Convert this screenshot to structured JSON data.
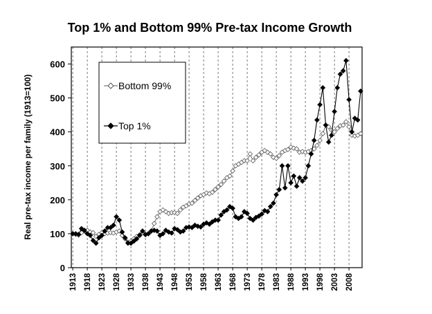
{
  "chart_data": {
    "type": "line",
    "title": "Top 1% and Bottom 99% Pre-tax Income Growth",
    "xlabel": "",
    "ylabel": "Real pre-tax income per family (1913=100)",
    "ylim": [
      0,
      650
    ],
    "xlim": [
      1913,
      2012
    ],
    "yticks": [
      0,
      100,
      200,
      300,
      400,
      500,
      600
    ],
    "xticks": [
      1913,
      1918,
      1923,
      1928,
      1933,
      1938,
      1943,
      1948,
      1953,
      1958,
      1963,
      1968,
      1973,
      1978,
      1983,
      1988,
      1993,
      1998,
      2003,
      2008
    ],
    "grid": "vertical-dashed",
    "legend_position": "top-left",
    "series": [
      {
        "name": "Bottom 99%",
        "marker": "open-diamond",
        "color": "#7a7a7a",
        "x": [
          1913,
          1914,
          1915,
          1916,
          1917,
          1918,
          1919,
          1920,
          1921,
          1922,
          1923,
          1924,
          1925,
          1926,
          1927,
          1928,
          1929,
          1930,
          1931,
          1932,
          1933,
          1934,
          1935,
          1936,
          1937,
          1938,
          1939,
          1940,
          1941,
          1942,
          1943,
          1944,
          1945,
          1946,
          1947,
          1948,
          1949,
          1950,
          1951,
          1952,
          1953,
          1954,
          1955,
          1956,
          1957,
          1958,
          1959,
          1960,
          1961,
          1962,
          1963,
          1964,
          1965,
          1966,
          1967,
          1968,
          1969,
          1970,
          1971,
          1972,
          1973,
          1974,
          1975,
          1976,
          1977,
          1978,
          1979,
          1980,
          1981,
          1982,
          1983,
          1984,
          1985,
          1986,
          1987,
          1988,
          1989,
          1990,
          1991,
          1992,
          1993,
          1994,
          1995,
          1996,
          1997,
          1998,
          1999,
          2000,
          2001,
          2002,
          2003,
          2004,
          2005,
          2006,
          2007,
          2008,
          2009,
          2010,
          2011,
          2012
        ],
        "y": [
          100,
          98,
          96,
          103,
          108,
          110,
          105,
          103,
          92,
          98,
          103,
          100,
          102,
          103,
          102,
          105,
          108,
          95,
          85,
          75,
          78,
          85,
          92,
          97,
          103,
          97,
          100,
          108,
          130,
          150,
          165,
          170,
          165,
          160,
          162,
          162,
          160,
          170,
          178,
          182,
          188,
          190,
          198,
          205,
          212,
          215,
          220,
          218,
          222,
          230,
          238,
          245,
          255,
          265,
          270,
          285,
          300,
          305,
          310,
          315,
          315,
          335,
          315,
          325,
          332,
          340,
          345,
          340,
          335,
          325,
          322,
          330,
          340,
          345,
          348,
          355,
          352,
          350,
          340,
          342,
          340,
          342,
          345,
          350,
          360,
          375,
          395,
          420,
          415,
          405,
          400,
          410,
          418,
          420,
          430,
          415,
          390,
          388,
          390,
          395
        ]
      },
      {
        "name": "Top 1%",
        "marker": "filled-diamond",
        "color": "#000000",
        "x": [
          1913,
          1914,
          1915,
          1916,
          1917,
          1918,
          1919,
          1920,
          1921,
          1922,
          1923,
          1924,
          1925,
          1926,
          1927,
          1928,
          1929,
          1930,
          1931,
          1932,
          1933,
          1934,
          1935,
          1936,
          1937,
          1938,
          1939,
          1940,
          1941,
          1942,
          1943,
          1944,
          1945,
          1946,
          1947,
          1948,
          1949,
          1950,
          1951,
          1952,
          1953,
          1954,
          1955,
          1956,
          1957,
          1958,
          1959,
          1960,
          1961,
          1962,
          1963,
          1964,
          1965,
          1966,
          1967,
          1968,
          1969,
          1970,
          1971,
          1972,
          1973,
          1974,
          1975,
          1976,
          1977,
          1978,
          1979,
          1980,
          1981,
          1982,
          1983,
          1984,
          1985,
          1986,
          1987,
          1988,
          1989,
          1990,
          1991,
          1992,
          1993,
          1994,
          1995,
          1996,
          1997,
          1998,
          1999,
          2000,
          2001,
          2002,
          2003,
          2004,
          2005,
          2006,
          2007,
          2008,
          2009,
          2010,
          2011,
          2012
        ],
        "y": [
          100,
          100,
          98,
          115,
          110,
          100,
          95,
          80,
          72,
          88,
          95,
          108,
          118,
          118,
          125,
          150,
          140,
          105,
          88,
          72,
          72,
          78,
          85,
          95,
          108,
          98,
          100,
          108,
          110,
          108,
          95,
          100,
          110,
          105,
          102,
          115,
          112,
          105,
          108,
          118,
          120,
          118,
          125,
          122,
          120,
          128,
          132,
          128,
          135,
          140,
          140,
          155,
          165,
          170,
          180,
          175,
          150,
          145,
          150,
          165,
          160,
          145,
          140,
          148,
          152,
          158,
          168,
          165,
          180,
          190,
          215,
          230,
          300,
          235,
          300,
          250,
          270,
          240,
          265,
          255,
          265,
          300,
          335,
          375,
          435,
          480,
          530,
          420,
          370,
          390,
          460,
          530,
          570,
          580,
          610,
          495,
          400,
          440,
          435,
          520
        ]
      }
    ]
  }
}
